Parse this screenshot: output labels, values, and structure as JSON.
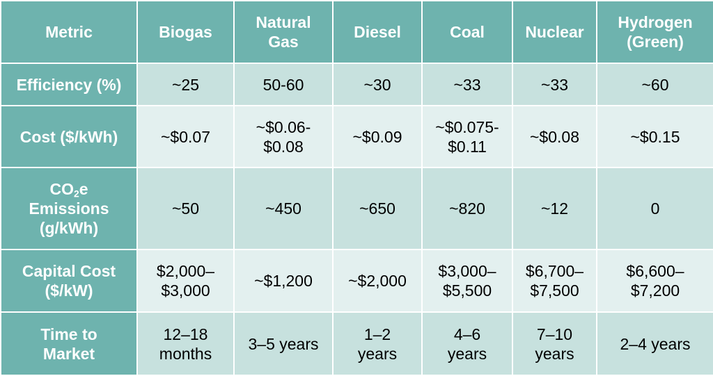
{
  "table": {
    "headers": [
      "Metric",
      "Biogas",
      "Natural\nGas",
      "Diesel",
      "Coal",
      "Nuclear",
      "Hydrogen\n(Green)"
    ],
    "rows": [
      {
        "metric": "Efficiency (%)",
        "values": [
          "~25",
          "50-60",
          "~30",
          "~33",
          "~33",
          "~60"
        ]
      },
      {
        "metric": "Cost ($/kWh)",
        "values": [
          "~$0.07",
          "~$0.06-\n$0.08",
          "~$0.09",
          "~$0.075-\n$0.11",
          "~$0.08",
          "~$0.15"
        ]
      },
      {
        "metric_parts": {
          "pre": "CO",
          "sub": "2",
          "post": "e\nEmissions\n(g/kWh)"
        },
        "values": [
          "~50",
          "~450",
          "~650",
          "~820",
          "~12",
          "0"
        ]
      },
      {
        "metric": "Capital Cost\n($/kW)",
        "values": [
          "$2,000–\n$3,000",
          "~$1,200",
          "~$2,000",
          "$3,000–\n$5,500",
          "$6,700–\n$7,500",
          "$6,600–\n$7,200"
        ]
      },
      {
        "metric": "Time to\nMarket",
        "values": [
          "12–18\nmonths",
          "3–5 years",
          "1–2\nyears",
          "4–6\nyears",
          "7–10\nyears",
          "2–4 years"
        ]
      }
    ]
  },
  "colors": {
    "header_bg": "#6eb3ae",
    "band_a": "#c7e1de",
    "band_b": "#e3f0ef",
    "header_text": "#ffffff",
    "body_text": "#000000"
  }
}
